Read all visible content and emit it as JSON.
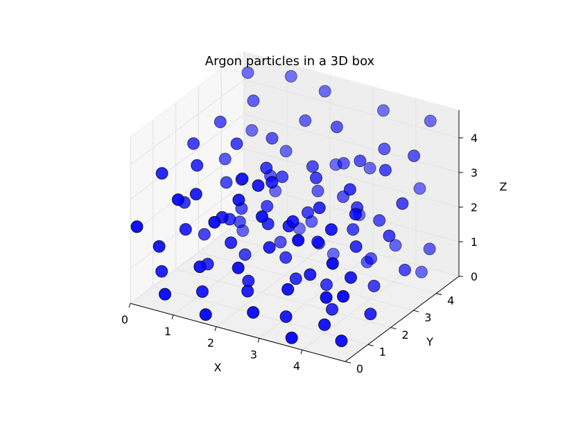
{
  "chart_data": {
    "type": "scatter",
    "projection": "3d",
    "title": "Argon particles in a 3D box",
    "xlabel": "X",
    "ylabel": "Y",
    "zlabel": "Z",
    "xlim": [
      0,
      5
    ],
    "ylim": [
      0,
      5
    ],
    "zlim": [
      0,
      4.8
    ],
    "x_ticks": [
      "0",
      "1",
      "2",
      "3",
      "4"
    ],
    "y_ticks": [
      "0",
      "1",
      "2",
      "3",
      "4"
    ],
    "z_ticks": [
      "0",
      "1",
      "2",
      "3",
      "4"
    ],
    "grid": true,
    "marker_color": "#0000ff",
    "marker_edge_color": "#000000",
    "pane_color": "#f2f2f2",
    "points": [
      {
        "x": 0.3,
        "y": 4.6,
        "z": 4.5
      },
      {
        "x": 1.2,
        "y": 4.8,
        "z": 4.6
      },
      {
        "x": 2.2,
        "y": 4.4,
        "z": 4.7
      },
      {
        "x": 3.4,
        "y": 4.7,
        "z": 4.4
      },
      {
        "x": 4.6,
        "y": 4.5,
        "z": 4.6
      },
      {
        "x": 0.8,
        "y": 3.9,
        "z": 4.2
      },
      {
        "x": 1.9,
        "y": 4.1,
        "z": 3.9
      },
      {
        "x": 2.9,
        "y": 3.6,
        "z": 4.3
      },
      {
        "x": 3.9,
        "y": 3.8,
        "z": 3.9
      },
      {
        "x": 4.8,
        "y": 3.4,
        "z": 4.2
      },
      {
        "x": 0.4,
        "y": 3.2,
        "z": 3.8
      },
      {
        "x": 1.5,
        "y": 3.4,
        "z": 3.6
      },
      {
        "x": 2.6,
        "y": 3.1,
        "z": 3.3
      },
      {
        "x": 3.6,
        "y": 3.3,
        "z": 3.7
      },
      {
        "x": 4.4,
        "y": 2.9,
        "z": 3.9
      },
      {
        "x": 0.2,
        "y": 2.4,
        "z": 3.5
      },
      {
        "x": 1.1,
        "y": 2.6,
        "z": 3.7
      },
      {
        "x": 2.0,
        "y": 2.2,
        "z": 3.5
      },
      {
        "x": 3.0,
        "y": 2.5,
        "z": 3.4
      },
      {
        "x": 4.0,
        "y": 2.1,
        "z": 3.6
      },
      {
        "x": 4.9,
        "y": 2.7,
        "z": 3.2
      },
      {
        "x": 0.6,
        "y": 1.8,
        "z": 3.3
      },
      {
        "x": 1.6,
        "y": 1.9,
        "z": 3.2
      },
      {
        "x": 2.5,
        "y": 1.5,
        "z": 3.6
      },
      {
        "x": 3.5,
        "y": 1.7,
        "z": 3.1
      },
      {
        "x": 4.5,
        "y": 1.4,
        "z": 3.4
      },
      {
        "x": 0.1,
        "y": 1.2,
        "z": 3.2
      },
      {
        "x": 1.0,
        "y": 1.0,
        "z": 3.0
      },
      {
        "x": 2.1,
        "y": 0.8,
        "z": 3.3
      },
      {
        "x": 3.2,
        "y": 1.1,
        "z": 2.9
      },
      {
        "x": 4.2,
        "y": 0.9,
        "z": 3.1
      },
      {
        "x": 0.9,
        "y": 0.4,
        "z": 3.1
      },
      {
        "x": 1.8,
        "y": 0.3,
        "z": 2.8
      },
      {
        "x": 2.8,
        "y": 0.5,
        "z": 3.2
      },
      {
        "x": 3.8,
        "y": 0.2,
        "z": 3.0
      },
      {
        "x": 0.5,
        "y": 4.4,
        "z": 3.0
      },
      {
        "x": 1.4,
        "y": 4.2,
        "z": 2.8
      },
      {
        "x": 2.4,
        "y": 4.5,
        "z": 2.6
      },
      {
        "x": 3.3,
        "y": 4.3,
        "z": 2.9
      },
      {
        "x": 4.3,
        "y": 4.6,
        "z": 2.5
      },
      {
        "x": 0.3,
        "y": 3.6,
        "z": 2.5
      },
      {
        "x": 1.3,
        "y": 3.7,
        "z": 2.3
      },
      {
        "x": 2.3,
        "y": 3.9,
        "z": 2.1
      },
      {
        "x": 3.1,
        "y": 3.5,
        "z": 2.4
      },
      {
        "x": 4.1,
        "y": 3.2,
        "z": 2.2
      },
      {
        "x": 0.7,
        "y": 2.9,
        "z": 2.3
      },
      {
        "x": 1.7,
        "y": 2.8,
        "z": 2.0
      },
      {
        "x": 2.7,
        "y": 2.7,
        "z": 2.2
      },
      {
        "x": 3.7,
        "y": 2.8,
        "z": 2.0
      },
      {
        "x": 4.7,
        "y": 2.5,
        "z": 2.3
      },
      {
        "x": 0.2,
        "y": 2.0,
        "z": 2.0
      },
      {
        "x": 1.2,
        "y": 2.1,
        "z": 1.8
      },
      {
        "x": 2.2,
        "y": 1.9,
        "z": 2.1
      },
      {
        "x": 3.3,
        "y": 2.0,
        "z": 1.9
      },
      {
        "x": 4.3,
        "y": 1.8,
        "z": 2.2
      },
      {
        "x": 0.6,
        "y": 1.3,
        "z": 1.7
      },
      {
        "x": 1.6,
        "y": 1.4,
        "z": 1.6
      },
      {
        "x": 2.6,
        "y": 1.2,
        "z": 1.9
      },
      {
        "x": 3.6,
        "y": 1.1,
        "z": 1.5
      },
      {
        "x": 4.6,
        "y": 1.0,
        "z": 1.8
      },
      {
        "x": 0.3,
        "y": 0.7,
        "z": 1.4
      },
      {
        "x": 1.3,
        "y": 0.6,
        "z": 1.2
      },
      {
        "x": 2.3,
        "y": 0.4,
        "z": 1.6
      },
      {
        "x": 3.4,
        "y": 0.5,
        "z": 1.3
      },
      {
        "x": 4.4,
        "y": 0.3,
        "z": 1.5
      },
      {
        "x": 0.1,
        "y": 4.7,
        "z": 1.3
      },
      {
        "x": 1.1,
        "y": 4.3,
        "z": 1.5
      },
      {
        "x": 2.1,
        "y": 4.0,
        "z": 1.1
      },
      {
        "x": 3.0,
        "y": 4.4,
        "z": 1.4
      },
      {
        "x": 4.0,
        "y": 4.1,
        "z": 1.0
      },
      {
        "x": 4.9,
        "y": 3.9,
        "z": 1.3
      },
      {
        "x": 0.8,
        "y": 3.3,
        "z": 1.0
      },
      {
        "x": 1.8,
        "y": 3.2,
        "z": 0.8
      },
      {
        "x": 2.8,
        "y": 3.0,
        "z": 1.2
      },
      {
        "x": 3.8,
        "y": 3.4,
        "z": 0.9
      },
      {
        "x": 4.8,
        "y": 3.0,
        "z": 1.1
      },
      {
        "x": 0.4,
        "y": 2.5,
        "z": 0.9
      },
      {
        "x": 1.4,
        "y": 2.4,
        "z": 0.7
      },
      {
        "x": 2.4,
        "y": 2.3,
        "z": 1.0
      },
      {
        "x": 3.4,
        "y": 2.2,
        "z": 0.6
      },
      {
        "x": 4.4,
        "y": 2.4,
        "z": 0.8
      },
      {
        "x": 0.9,
        "y": 1.7,
        "z": 0.6
      },
      {
        "x": 1.9,
        "y": 1.6,
        "z": 0.5
      },
      {
        "x": 2.9,
        "y": 1.8,
        "z": 0.8
      },
      {
        "x": 3.9,
        "y": 1.5,
        "z": 0.4
      },
      {
        "x": 4.9,
        "y": 1.3,
        "z": 0.7
      },
      {
        "x": 0.2,
        "y": 1.0,
        "z": 0.5
      },
      {
        "x": 1.2,
        "y": 0.9,
        "z": 0.3
      },
      {
        "x": 2.2,
        "y": 1.0,
        "z": 0.6
      },
      {
        "x": 3.2,
        "y": 0.8,
        "z": 0.3
      },
      {
        "x": 4.2,
        "y": 0.6,
        "z": 0.5
      },
      {
        "x": 0.7,
        "y": 0.2,
        "z": 0.4
      },
      {
        "x": 1.7,
        "y": 0.1,
        "z": 0.2
      },
      {
        "x": 2.7,
        "y": 0.3,
        "z": 0.5
      },
      {
        "x": 3.7,
        "y": 0.1,
        "z": 0.2
      },
      {
        "x": 4.7,
        "y": 0.4,
        "z": 0.3
      },
      {
        "x": 0.5,
        "y": 4.0,
        "z": 0.3
      },
      {
        "x": 1.5,
        "y": 4.6,
        "z": 0.4
      },
      {
        "x": 2.5,
        "y": 4.2,
        "z": 0.2
      },
      {
        "x": 3.5,
        "y": 3.8,
        "z": 0.5
      },
      {
        "x": 4.5,
        "y": 4.3,
        "z": 0.3
      },
      {
        "x": 4.9,
        "y": 0.1,
        "z": 1.8
      },
      {
        "x": 4.6,
        "y": 0.2,
        "z": 2.6
      },
      {
        "x": 0.1,
        "y": 0.1,
        "z": 2.2
      },
      {
        "x": 2.0,
        "y": 2.9,
        "z": 2.9
      },
      {
        "x": 3.0,
        "y": 1.3,
        "z": 2.6
      },
      {
        "x": 1.0,
        "y": 3.0,
        "z": 1.6
      },
      {
        "x": 2.9,
        "y": 3.9,
        "z": 3.1
      },
      {
        "x": 3.9,
        "y": 2.6,
        "z": 2.8
      },
      {
        "x": 1.5,
        "y": 1.2,
        "z": 2.4
      },
      {
        "x": 2.5,
        "y": 0.9,
        "z": 3.8
      }
    ]
  }
}
